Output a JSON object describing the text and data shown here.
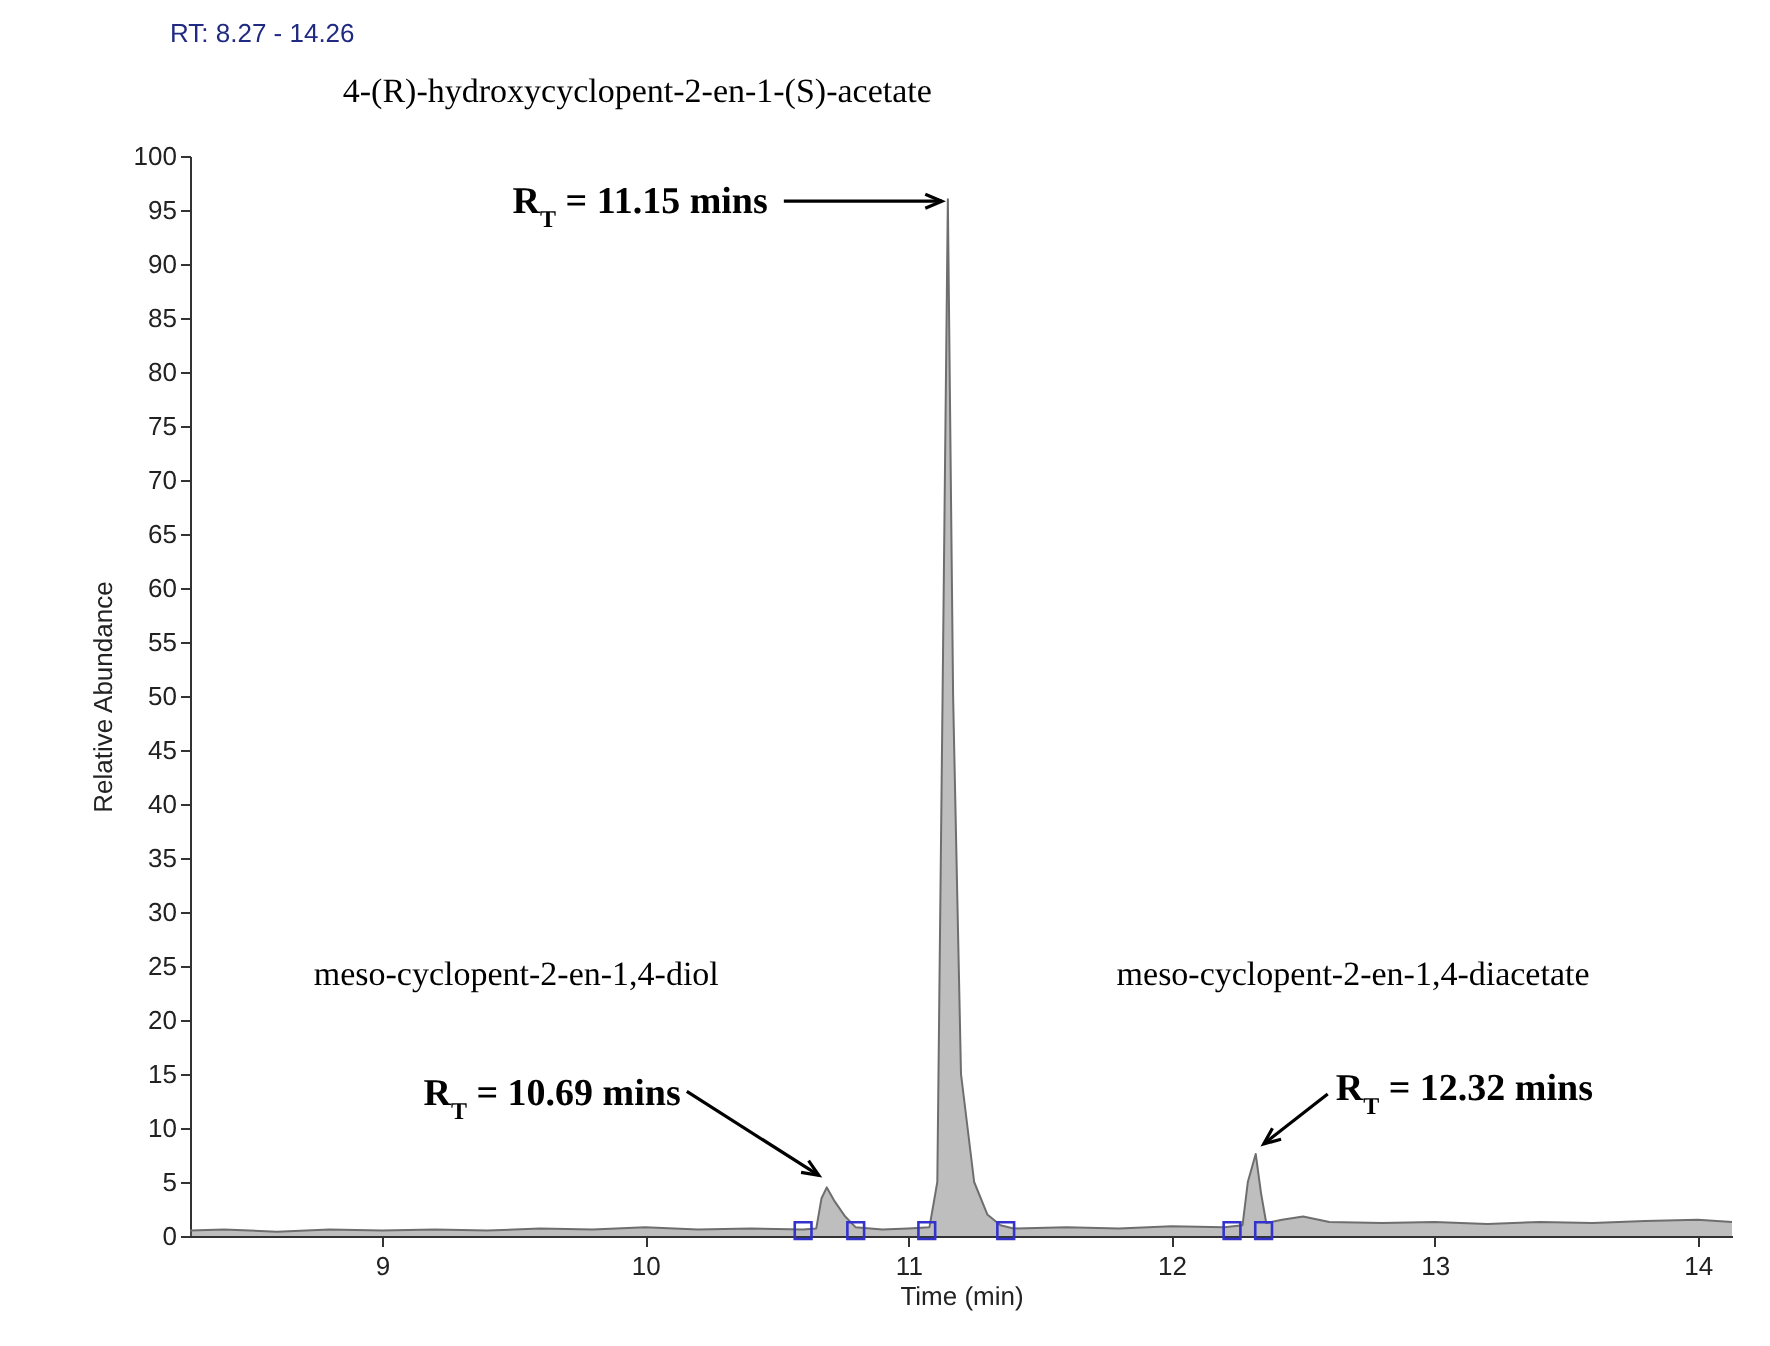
{
  "chart_data": {
    "type": "area",
    "title": "RT: 8.27 - 14.26",
    "xlabel": "Time (min)",
    "ylabel": "Relative Abundance",
    "xlim": [
      8.27,
      14.13
    ],
    "ylim": [
      0,
      100
    ],
    "xticks": [
      9,
      10,
      11,
      12,
      13,
      14
    ],
    "yticks": [
      0,
      5,
      10,
      15,
      20,
      25,
      30,
      35,
      40,
      45,
      50,
      55,
      60,
      65,
      70,
      75,
      80,
      85,
      90,
      95,
      100
    ],
    "grid": false,
    "series": [
      {
        "color": "#6e6e6e",
        "x": [
          8.27,
          8.4,
          8.6,
          8.8,
          9.0,
          9.2,
          9.4,
          9.6,
          9.8,
          10.0,
          10.2,
          10.4,
          10.6,
          10.65,
          10.67,
          10.69,
          10.72,
          10.76,
          10.8,
          10.9,
          11.0,
          11.08,
          11.11,
          11.13,
          11.15,
          11.17,
          11.2,
          11.25,
          11.3,
          11.35,
          11.4,
          11.6,
          11.8,
          12.0,
          12.2,
          12.27,
          12.29,
          12.32,
          12.34,
          12.36,
          12.42,
          12.5,
          12.6,
          12.8,
          13.0,
          13.2,
          13.4,
          13.6,
          13.8,
          14.0,
          14.13
        ],
        "values": [
          0.5,
          0.6,
          0.4,
          0.6,
          0.5,
          0.6,
          0.5,
          0.7,
          0.6,
          0.8,
          0.6,
          0.7,
          0.6,
          0.7,
          3.5,
          4.5,
          3.2,
          1.8,
          0.8,
          0.6,
          0.7,
          0.8,
          5,
          50,
          96,
          50,
          15,
          5,
          2,
          1,
          0.7,
          0.8,
          0.7,
          0.9,
          0.8,
          1,
          5,
          7.6,
          4,
          1.2,
          1.5,
          1.8,
          1.3,
          1.2,
          1.3,
          1.1,
          1.3,
          1.2,
          1.4,
          1.5,
          1.3
        ]
      },
      {
        "type": "scatter",
        "marker": "square",
        "color": "#3333cc",
        "x": [
          10.6,
          10.8,
          11.07,
          11.37,
          12.23,
          12.35
        ],
        "values": [
          0.5,
          0.5,
          0.5,
          0.5,
          0.5,
          0.5
        ]
      }
    ],
    "annotations": [
      "4-(R)-hydroxycyclopent-2-en-1-(S)-acetate",
      "meso-cyclopent-2-en-1,4-diol",
      "meso-cyclopent-2-en-1,4-diacetate",
      {
        "text": "R$_{T}$ = 11.15 mins",
        "x": 11.15,
        "y": 96
      },
      {
        "text": "R$_{T}$ = 10.69 mins",
        "x": 10.69,
        "y": 4.5
      },
      {
        "text": "R$_{T}$ = 12.32 mins",
        "x": 12.32,
        "y": 7.6
      }
    ]
  }
}
